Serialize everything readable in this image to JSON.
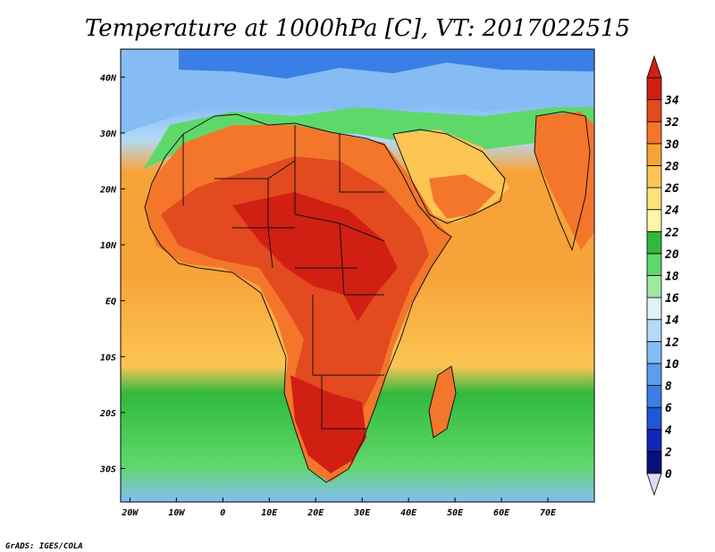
{
  "title": "Temperature at 1000hPa [C], VT: 2017022515",
  "credit": "GrADS: IGES/COLA",
  "map": {
    "lon_range": [
      -22,
      80
    ],
    "lat_range": [
      -36,
      45
    ],
    "x_ticks": [
      "20W",
      "10W",
      "0",
      "10E",
      "20E",
      "30E",
      "40E",
      "50E",
      "60E",
      "70E"
    ],
    "x_tick_lons": [
      -20,
      -10,
      0,
      10,
      20,
      30,
      40,
      50,
      60,
      70
    ],
    "y_ticks": [
      "40N",
      "30N",
      "20N",
      "10N",
      "EQ",
      "10S",
      "20S",
      "30S"
    ],
    "y_tick_lats": [
      40,
      30,
      20,
      10,
      0,
      -10,
      -20,
      -30
    ]
  },
  "colorbar": {
    "labels": [
      "0",
      "2",
      "4",
      "6",
      "8",
      "10",
      "12",
      "14",
      "16",
      "18",
      "20",
      "22",
      "24",
      "26",
      "28",
      "30",
      "32",
      "34"
    ],
    "colors": [
      "#0b0f7a",
      "#1226b8",
      "#2057d8",
      "#3a7fe6",
      "#5b9eee",
      "#84bcf3",
      "#b3daf7",
      "#dff4f5",
      "#9ee8a4",
      "#5fd86a",
      "#31b93f",
      "#fef6a8",
      "#fde27a",
      "#fcc453",
      "#f8a33a",
      "#f3762b",
      "#e34a1f",
      "#d21f14"
    ],
    "under_color": "#e0dcf8",
    "over_color": "#d21f14"
  }
}
